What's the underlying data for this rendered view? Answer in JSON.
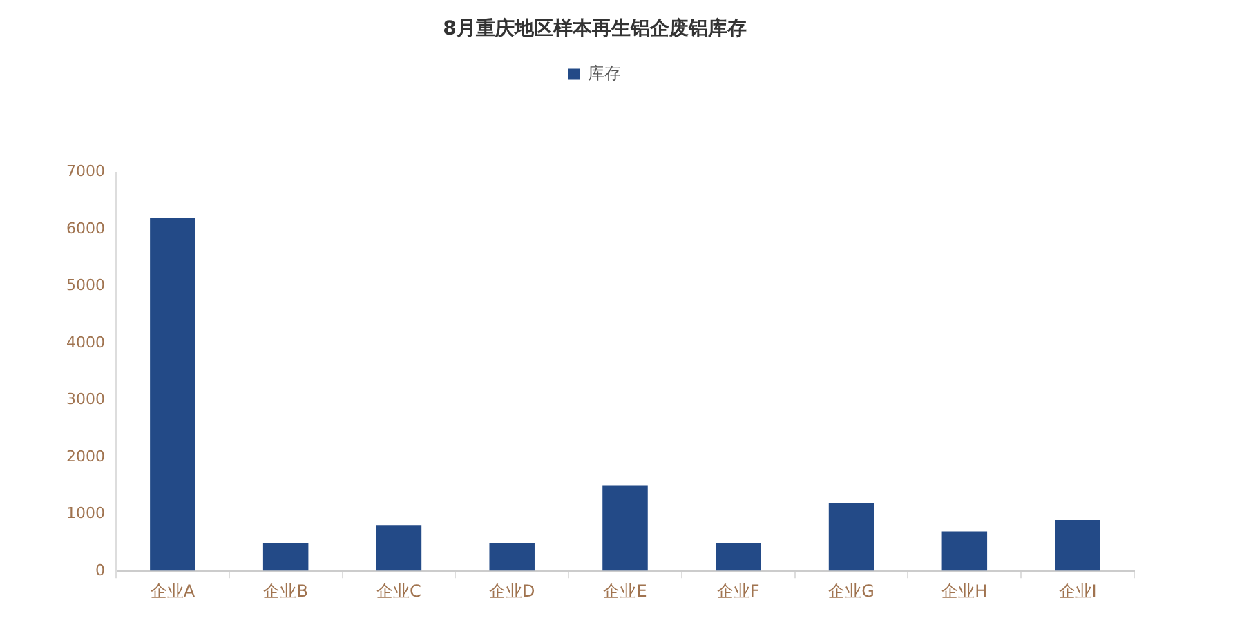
{
  "chart_data": {
    "type": "bar",
    "title": "8月重庆地区样本再生铝企废铝库存",
    "categories": [
      "企业A",
      "企业B",
      "企业C",
      "企业D",
      "企业E",
      "企业F",
      "企业G",
      "企业H",
      "企业I"
    ],
    "series": [
      {
        "name": "库存",
        "color": "#234a87",
        "values": [
          6200,
          500,
          800,
          500,
          1500,
          500,
          1200,
          700,
          900
        ]
      }
    ],
    "ylim": [
      0,
      7000
    ],
    "yticks": [
      0,
      1000,
      2000,
      3000,
      4000,
      5000,
      6000,
      7000
    ],
    "grid": false,
    "legend": "top"
  }
}
